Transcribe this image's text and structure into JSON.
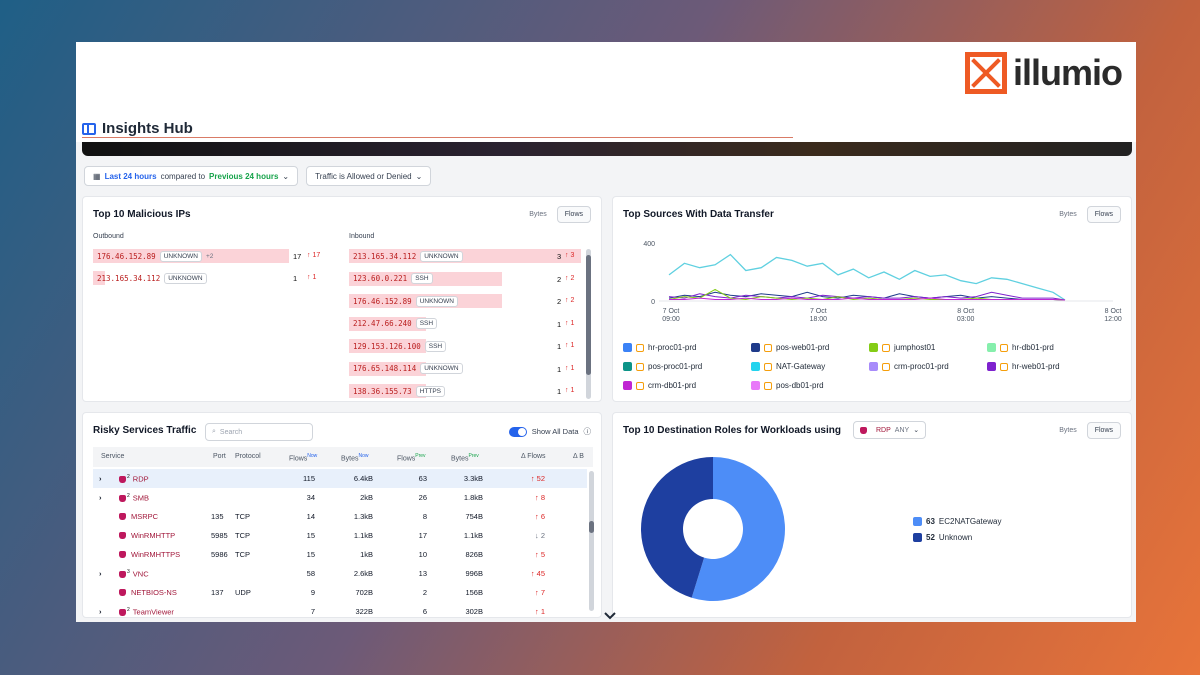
{
  "brand": {
    "name": "illumio"
  },
  "header": {
    "title": "Insights Hub"
  },
  "filters": {
    "time_range": "Last 24 hours",
    "compared_to": "compared to",
    "compare_range": "Previous 24 hours",
    "traffic": "Traffic is Allowed or Denied"
  },
  "malicious": {
    "title": "Top 10 Malicious IPs",
    "toggle": {
      "bytes": "Bytes",
      "flows": "Flows"
    },
    "outbound_label": "Outbound",
    "inbound_label": "Inbound",
    "outbound": [
      {
        "ip": "176.46.152.89",
        "tag": "UNKNOWN",
        "extra": "+2",
        "count": "17",
        "delta": "↑ 17",
        "fill": 1.0
      },
      {
        "ip": "213.165.34.112",
        "tag": "UNKNOWN",
        "extra": "",
        "count": "1",
        "delta": "↑ 1",
        "fill": 0.06
      }
    ],
    "inbound": [
      {
        "ip": "213.165.34.112",
        "tag": "UNKNOWN",
        "count": "3",
        "delta": "↑ 3",
        "fill": 1.0
      },
      {
        "ip": "123.60.0.221",
        "tag": "SSH",
        "count": "2",
        "delta": "↑ 2",
        "fill": 0.66
      },
      {
        "ip": "176.46.152.89",
        "tag": "UNKNOWN",
        "count": "2",
        "delta": "↑ 2",
        "fill": 0.66
      },
      {
        "ip": "212.47.66.240",
        "tag": "SSH",
        "count": "1",
        "delta": "↑ 1",
        "fill": 0.33
      },
      {
        "ip": "129.153.126.100",
        "tag": "SSH",
        "count": "1",
        "delta": "↑ 1",
        "fill": 0.33
      },
      {
        "ip": "176.65.148.114",
        "tag": "UNKNOWN",
        "count": "1",
        "delta": "↑ 1",
        "fill": 0.33
      },
      {
        "ip": "138.36.155.73",
        "tag": "HTTPS",
        "count": "1",
        "delta": "↑ 1",
        "fill": 0.33
      }
    ]
  },
  "sources": {
    "title": "Top Sources With Data Transfer",
    "toggle": {
      "bytes": "Bytes",
      "flows": "Flows"
    },
    "legend": [
      {
        "name": "hr-proc01-prd",
        "color": "#3b82f6"
      },
      {
        "name": "pos-web01-prd",
        "color": "#1e3a8a"
      },
      {
        "name": "jumphost01",
        "color": "#84cc16"
      },
      {
        "name": "hr-db01-prd",
        "color": "#86efac"
      },
      {
        "name": "pos-proc01-prd",
        "color": "#0d9488"
      },
      {
        "name": "NAT-Gateway",
        "color": "#22d3ee"
      },
      {
        "name": "crm-proc01-prd",
        "color": "#a78bfa"
      },
      {
        "name": "hr-web01-prd",
        "color": "#7e22ce"
      },
      {
        "name": "crm-db01-prd",
        "color": "#c026d3"
      },
      {
        "name": "pos-db01-prd",
        "color": "#e879f9"
      }
    ]
  },
  "chart_data": {
    "type": "line",
    "title": "Top Sources With Data Transfer",
    "x_ticks": [
      "7 Oct\n09:00",
      "7 Oct\n18:00",
      "8 Oct\n03:00",
      "8 Oct\n12:00"
    ],
    "y_ticks": [
      "400",
      "0"
    ],
    "ylim": [
      0,
      400
    ],
    "x": [
      0,
      1,
      2,
      3,
      4,
      5,
      6,
      7,
      8,
      9,
      10,
      11,
      12,
      13,
      14,
      15,
      16,
      17,
      18,
      19,
      20,
      21,
      22,
      23,
      24,
      25
    ],
    "series": [
      {
        "name": "NAT-Gateway",
        "color": "#5fd0e0",
        "values": [
          180,
          260,
          230,
          250,
          320,
          210,
          230,
          300,
          280,
          240,
          260,
          180,
          220,
          160,
          200,
          150,
          210,
          170,
          180,
          140,
          120,
          160,
          150,
          120,
          90,
          60
        ]
      },
      {
        "name": "pos-web01-prd",
        "color": "#1e3a8a",
        "values": [
          20,
          40,
          30,
          60,
          40,
          30,
          50,
          40,
          30,
          60,
          30,
          20,
          40,
          30,
          20,
          50,
          30,
          20,
          30,
          40,
          20,
          30,
          20,
          10,
          10,
          10
        ]
      },
      {
        "name": "hr-web01-prd",
        "color": "#7e22ce",
        "values": [
          30,
          20,
          50,
          30,
          20,
          40,
          30,
          20,
          30,
          20,
          40,
          30,
          20,
          30,
          20,
          20,
          30,
          20,
          30,
          20,
          30,
          60,
          40,
          20,
          20,
          20
        ]
      },
      {
        "name": "jumphost01",
        "color": "#84cc16",
        "values": [
          10,
          30,
          20,
          80,
          20,
          10,
          30,
          20,
          10,
          20,
          10,
          30,
          10,
          20,
          10,
          10,
          20,
          10,
          10,
          10,
          20,
          10,
          10,
          10,
          10,
          10
        ]
      },
      {
        "name": "crm-db01-prd",
        "color": "#c026d3",
        "values": [
          10,
          10,
          20,
          10,
          10,
          20,
          10,
          10,
          20,
          10,
          10,
          10,
          20,
          10,
          10,
          10,
          10,
          20,
          10,
          10,
          10,
          10,
          10,
          10,
          10,
          10
        ]
      }
    ]
  },
  "risky": {
    "title": "Risky Services Traffic",
    "search_placeholder": "Search",
    "show_all": "Show All Data",
    "columns": {
      "service": "Service",
      "port": "Port",
      "protocol": "Protocol",
      "flows_now": "Flows",
      "flows_now_sup": "Now",
      "bytes_now": "Bytes",
      "bytes_now_sup": "Now",
      "flows_prev": "Flows",
      "flows_prev_sup": "Prev",
      "bytes_prev": "Bytes",
      "bytes_prev_sup": "Prev",
      "delta_flows": "Δ Flows",
      "delta_b": "Δ B"
    },
    "rows": [
      {
        "expand": "›",
        "name": "RDP",
        "multi": "2",
        "port": "",
        "proto": "",
        "fn": "115",
        "bn": "6.4kB",
        "fp": "63",
        "bp": "3.3kB",
        "d": "↑ 52",
        "dir": "up"
      },
      {
        "expand": "›",
        "name": "SMB",
        "multi": "2",
        "port": "",
        "proto": "",
        "fn": "34",
        "bn": "2kB",
        "fp": "26",
        "bp": "1.8kB",
        "d": "↑ 8",
        "dir": "up"
      },
      {
        "expand": "",
        "name": "MSRPC",
        "multi": "",
        "port": "135",
        "proto": "TCP",
        "fn": "14",
        "bn": "1.3kB",
        "fp": "8",
        "bp": "754B",
        "d": "↑ 6",
        "dir": "up"
      },
      {
        "expand": "",
        "name": "WinRMHTTP",
        "multi": "",
        "port": "5985",
        "proto": "TCP",
        "fn": "15",
        "bn": "1.1kB",
        "fp": "17",
        "bp": "1.1kB",
        "d": "↓ 2",
        "dir": "down"
      },
      {
        "expand": "",
        "name": "WinRMHTTPS",
        "multi": "",
        "port": "5986",
        "proto": "TCP",
        "fn": "15",
        "bn": "1kB",
        "fp": "10",
        "bp": "826B",
        "d": "↑ 5",
        "dir": "up"
      },
      {
        "expand": "›",
        "name": "VNC",
        "multi": "3",
        "port": "",
        "proto": "",
        "fn": "58",
        "bn": "2.6kB",
        "fp": "13",
        "bp": "996B",
        "d": "↑ 45",
        "dir": "up"
      },
      {
        "expand": "",
        "name": "NETBIOS-NS",
        "multi": "",
        "port": "137",
        "proto": "UDP",
        "fn": "9",
        "bn": "702B",
        "fp": "2",
        "bp": "156B",
        "d": "↑ 7",
        "dir": "up"
      },
      {
        "expand": "›",
        "name": "TeamViewer",
        "multi": "2",
        "port": "",
        "proto": "",
        "fn": "7",
        "bn": "322B",
        "fp": "6",
        "bp": "302B",
        "d": "↑ 1",
        "dir": "up"
      }
    ]
  },
  "destinations": {
    "title": "Top 10 Destination Roles for Workloads using",
    "service_tag": "RDP",
    "service_any": "ANY",
    "toggle": {
      "bytes": "Bytes",
      "flows": "Flows"
    },
    "slices": [
      {
        "label": "EC2NATGateway",
        "value": 63,
        "value_text": "63",
        "color": "#4d8df7"
      },
      {
        "label": "Unknown",
        "value": 52,
        "value_text": "52",
        "color": "#1e3fa0"
      }
    ]
  }
}
